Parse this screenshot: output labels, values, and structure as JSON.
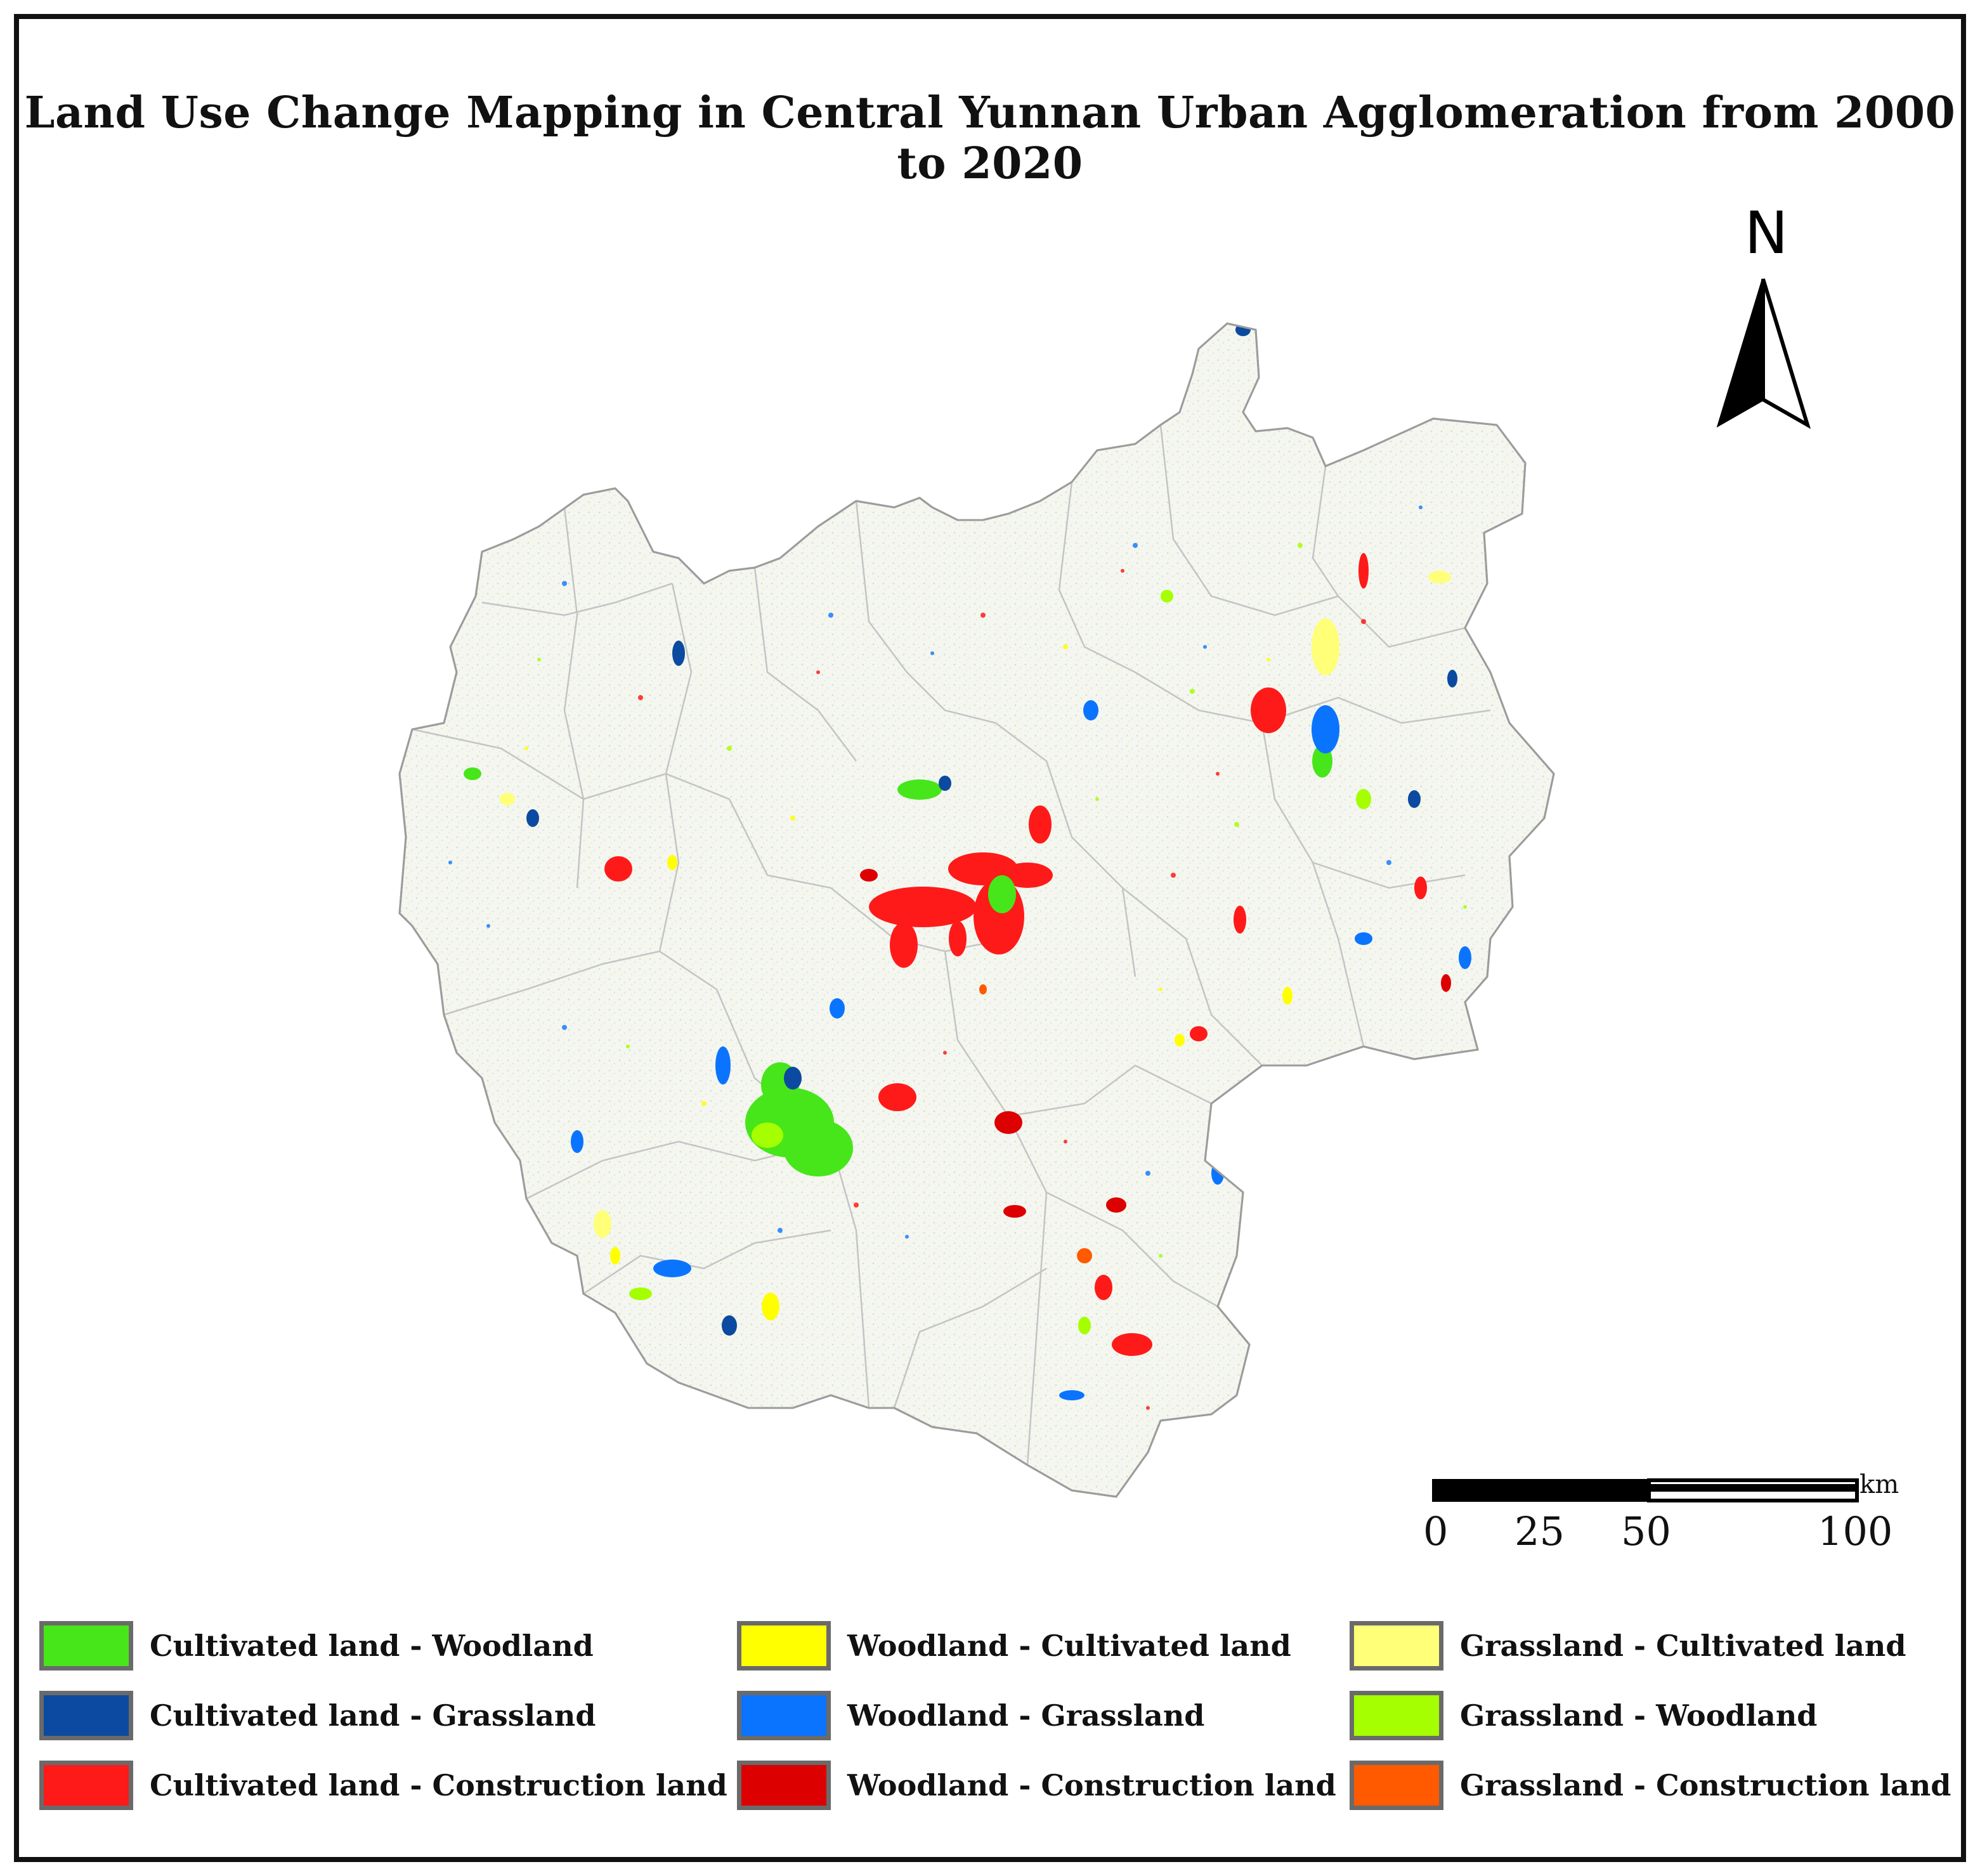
{
  "title": "Land Use Change Mapping in Central Yunnan Urban Agglomeration from 2000 to 2020",
  "north_arrow": {
    "letter": "N",
    "icon": "north-arrow-icon"
  },
  "scale_bar": {
    "unit": "km",
    "ticks": [
      "0",
      "25",
      "50",
      "100"
    ]
  },
  "legend": [
    {
      "label": "Cultivated land - Woodland",
      "color": "#46e61a"
    },
    {
      "label": "Cultivated land - Grassland",
      "color": "#0b4aa0"
    },
    {
      "label": "Cultivated land - Construction land",
      "color": "#ff1a1a"
    },
    {
      "label": "Woodland - Cultivated land",
      "color": "#ffff00"
    },
    {
      "label": "Woodland - Grassland",
      "color": "#0b74ff"
    },
    {
      "label": "Woodland - Construction land",
      "color": "#dc0000"
    },
    {
      "label": "Grassland - Cultivated land",
      "color": "#ffff78"
    },
    {
      "label": "Grassland - Woodland",
      "color": "#a6ff00"
    },
    {
      "label": "Grassland - Construction land",
      "color": "#ff5a00"
    }
  ],
  "colors": {
    "background_land": "#eef2e6",
    "boundary": "#b8b8b8",
    "frame": "#111111"
  }
}
